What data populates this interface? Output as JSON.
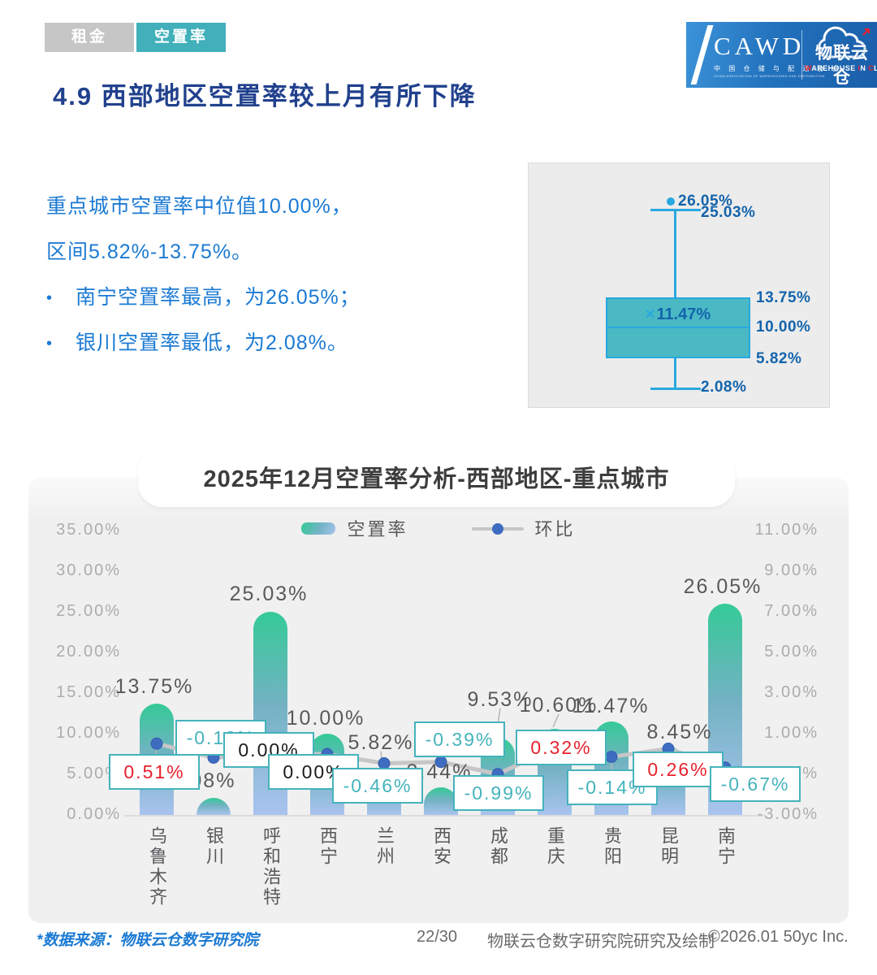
{
  "tabs": [
    {
      "label": "租金",
      "active": false
    },
    {
      "label": "空置率",
      "active": true
    }
  ],
  "logo": {
    "cawd": "CAWD",
    "cawd_sub_cn": "中 国 仓 储 与 配 送 协 会",
    "cawd_sub_en": "CHINA ASSOCIATION OF WAREHOUSING AND DISTRIBUTION",
    "brand_cn": "物联云仓",
    "en_w": "W",
    "en_arehouse": "AREHOUSE ",
    "en_i": "I",
    "en_n": "N ",
    "en_c": "C",
    "en_loud": "LOUD"
  },
  "page_title": "4.9 西部地区空置率较上月有所下降",
  "summary": {
    "lines": [
      {
        "bullet": "",
        "text": "重点城市空置率中位值10.00%，"
      },
      {
        "bullet": "",
        "text": "区间5.82%-13.75%。"
      },
      {
        "bullet": "•",
        "text": "南宁空置率最高，为26.05%；"
      },
      {
        "bullet": "•",
        "text": "银川空置率最低，为2.08%。"
      }
    ]
  },
  "chart_data": [
    {
      "type": "boxplot",
      "title": "重点城市空置率箱线图",
      "values": {
        "outlier": 26.05,
        "whisker_high": 25.03,
        "q3": 13.75,
        "mean": 11.47,
        "median": 10.0,
        "q1": 5.82,
        "whisker_low": 2.08
      },
      "labels": {
        "outlier": "26.05%",
        "whisker_high": "25.03%",
        "q3": "13.75%",
        "mean_marker": "×",
        "mean": "11.47%",
        "median": "10.00%",
        "q1": "5.82%",
        "whisker_low": "2.08%"
      }
    },
    {
      "type": "bar",
      "title": "2025年12月空置率分析-西部地区-重点城市",
      "categories": [
        "乌鲁木齐",
        "银川",
        "呼和浩特",
        "西宁",
        "兰州",
        "西安",
        "成都",
        "重庆",
        "贵阳",
        "昆明",
        "南宁"
      ],
      "series": [
        {
          "name": "空置率",
          "type": "bar",
          "axis": "left",
          "values": [
            13.75,
            2.08,
            25.03,
            10.0,
            5.82,
            3.44,
            9.53,
            10.6,
            11.47,
            8.45,
            26.05
          ],
          "labels": [
            "13.75%",
            "2.08%",
            "25.03%",
            "10.00%",
            "5.82%",
            "3.44%",
            "9.53%",
            "10.60%",
            "11.47%",
            "8.45%",
            "26.05%"
          ]
        },
        {
          "name": "环比",
          "type": "line",
          "axis": "right",
          "values": [
            0.51,
            -0.18,
            0.0,
            0.0,
            -0.46,
            -0.39,
            -0.99,
            0.32,
            -0.14,
            0.26,
            -0.67
          ],
          "labels": [
            "0.51%",
            "-0.18%",
            "0.00%",
            "0.00%",
            "-0.46%",
            "-0.39%",
            "-0.99%",
            "0.32%",
            "-0.14%",
            "0.26%",
            "-0.67%"
          ]
        }
      ],
      "left_axis": {
        "min": 0,
        "max": 35,
        "step": 5,
        "ticks": [
          "0.00%",
          "5.00%",
          "10.00%",
          "15.00%",
          "20.00%",
          "25.00%",
          "30.00%",
          "35.00%"
        ]
      },
      "right_axis": {
        "min": -3,
        "max": 11,
        "step": 2,
        "ticks": [
          "-3.00%",
          "-1.00%",
          "1.00%",
          "3.00%",
          "5.00%",
          "7.00%",
          "9.00%",
          "11.00%"
        ]
      },
      "grid": false,
      "legend_position": "top"
    }
  ],
  "colors": {
    "accent_teal": "#45b3bc",
    "tab_gray": "#c6c6c6",
    "title_navy": "#21418d",
    "text_blue": "#1b7ad3",
    "bar_gradient_top": "#35ca97",
    "bar_gradient_bottom": "#a9c3ee",
    "line_gray": "#c6c6c6",
    "dot_blue": "#3e6cc1",
    "positive_red": "#e8212e",
    "negative_teal": "#45b3bc",
    "zero_black": "#1a1a1a",
    "box_fill": "#4ab9c4",
    "box_line": "#29a8e0",
    "box_label_blue": "#1464ac"
  },
  "footer": {
    "source": "*数据来源：物联云仓数字研究院",
    "page": "22/30",
    "credit": "物联云仓数字研究院研究及绘制",
    "copyright": "©2026.01 50yc Inc."
  }
}
